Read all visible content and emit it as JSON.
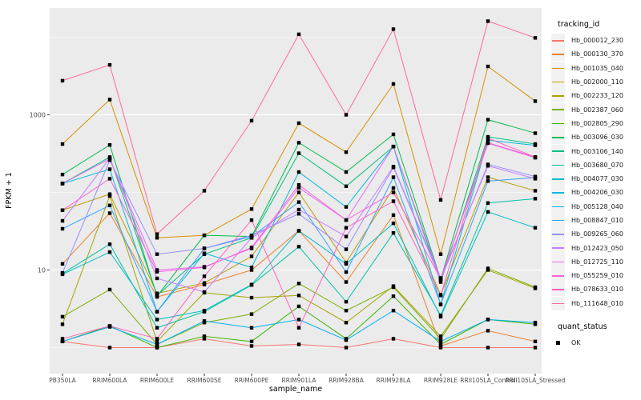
{
  "chart_data": {
    "type": "line",
    "title": "",
    "xlabel": "sample_name",
    "ylabel": "FPKM + 1",
    "yscale": "log10",
    "ylim": [
      0.85,
      25000
    ],
    "grid": true,
    "legend_position": "right",
    "ytick_values": [
      10,
      1000
    ],
    "ytick_labels": [
      "10",
      "1000"
    ],
    "major_gridlines": [
      10,
      1000
    ],
    "minor_gridlines": [
      1,
      100,
      10000
    ],
    "point_color": "#000000",
    "panel_color": "#EBEBEB",
    "gridline_color": "#FFFFFF",
    "axis_text_color": "#4D4D4D",
    "categories": [
      "PB350LA",
      "RRIM600LA",
      "RRIM600LE",
      "RRIM600SE",
      "RRIM600PE",
      "RRIM901LA",
      "RRIM928BA",
      "RRIM928LA",
      "RRIM928LE",
      "RRII105LA_Control",
      "RRII105LA_Stressed"
    ],
    "series": [
      {
        "name": "Hb_000012_230",
        "color": "#F8766D",
        "values": [
          1.2,
          1.0,
          1.0,
          1.3,
          1.05,
          1.1,
          1.0,
          1.3,
          1.0,
          1.0,
          1.0
        ]
      },
      {
        "name": "Hb_000130_370",
        "color": "#EA8331",
        "values": [
          12,
          54,
          4.5,
          6.5,
          10,
          32,
          7,
          51,
          1.05,
          1.65,
          1.2
        ]
      },
      {
        "name": "Hb_001035_040",
        "color": "#D89000",
        "values": [
          420,
          1570,
          26,
          28,
          61,
          780,
          330,
          2500,
          16,
          4200,
          1500
        ]
      },
      {
        "name": "Hb_002000_110",
        "color": "#C09B00",
        "values": [
          59,
          95,
          5,
          6.8,
          15,
          100,
          12.5,
          114,
          4.8,
          157,
          105
        ]
      },
      {
        "name": "Hb_002233_120",
        "color": "#A3A500",
        "values": [
          2.0,
          90,
          1.2,
          5.1,
          4.4,
          4.7,
          2.1,
          6.2,
          1.4,
          10,
          5.8
        ]
      },
      {
        "name": "Hb_002387_060",
        "color": "#7CAE00",
        "values": [
          2.5,
          5.6,
          1.1,
          2.1,
          2.7,
          6.7,
          3.0,
          6.0,
          1.3,
          10.5,
          6.0
        ]
      },
      {
        "name": "Hb_002805_290",
        "color": "#39B600",
        "values": [
          1.2,
          1.9,
          1.0,
          1.4,
          1.2,
          3.4,
          1.3,
          4.6,
          1.1,
          2.3,
          2.0
        ]
      },
      {
        "name": "Hb_003096_030",
        "color": "#00BB4E",
        "values": [
          170,
          409,
          4.6,
          28,
          27,
          437,
          183,
          560,
          7.6,
          865,
          580
        ]
      },
      {
        "name": "Hb_003106_140",
        "color": "#00BF7D",
        "values": [
          130,
          285,
          4.7,
          16,
          26,
          320,
          120,
          390,
          7.0,
          520,
          420
        ]
      },
      {
        "name": "Hb_003680_070",
        "color": "#00C1A3",
        "values": [
          9.0,
          21.5,
          1.8,
          2.9,
          6.4,
          20,
          3.9,
          30,
          2.6,
          73,
          83
        ]
      },
      {
        "name": "Hb_004077_030",
        "color": "#00BFC4",
        "values": [
          8.8,
          17,
          2.3,
          3.0,
          6.5,
          32,
          12,
          40,
          2.5,
          56,
          35
        ]
      },
      {
        "name": "Hb_004206_030",
        "color": "#00BAE0",
        "values": [
          130,
          199,
          2.9,
          16.4,
          10.8,
          183,
          65,
          390,
          3.6,
          470,
          405
        ]
      },
      {
        "name": "Hb_005128_040",
        "color": "#00B0F6",
        "values": [
          1.2,
          1.85,
          1.1,
          2.2,
          1.8,
          2.3,
          1.25,
          3.0,
          1.2,
          2.3,
          2.1
        ]
      },
      {
        "name": "Hb_008847_010",
        "color": "#35A2FF",
        "values": [
          34,
          68,
          2.9,
          19,
          27,
          75,
          9.4,
          157,
          3.6,
          140,
          155
        ]
      },
      {
        "name": "Hb_009265_060",
        "color": "#9590FF",
        "values": [
          9.2,
          260,
          16,
          19,
          28,
          53,
          18.5,
          210,
          7.5,
          230,
          160
        ]
      },
      {
        "name": "Hb_012423_050",
        "color": "#C77CFF",
        "values": [
          43,
          275,
          7.8,
          5.2,
          26,
          60,
          27,
          215,
          7.9,
          220,
          150
        ]
      },
      {
        "name": "Hb_012725_110",
        "color": "#E76BF3",
        "values": [
          130,
          270,
          10,
          11,
          19,
          115,
          44,
          390,
          7.6,
          437,
          285
        ]
      },
      {
        "name": "Hb_055259_010",
        "color": "#FA62DB",
        "values": [
          59,
          150,
          9.5,
          10.8,
          19.5,
          125,
          44,
          100,
          7.7,
          430,
          280
        ]
      },
      {
        "name": "Hb_078633_010",
        "color": "#FF62BC",
        "values": [
          1.3,
          1.9,
          1.3,
          8.3,
          44,
          1.8,
          35,
          77,
          4.7,
          500,
          285
        ]
      },
      {
        "name": "Hb_111648_010",
        "color": "#FF6A98",
        "values": [
          2750,
          4400,
          29,
          105,
          840,
          10900,
          1000,
          12700,
          80,
          16100,
          9800
        ]
      }
    ]
  },
  "legend": {
    "tracking_title": "tracking_id",
    "quant_title": "quant_status",
    "quant_items": [
      {
        "label": "OK"
      }
    ]
  }
}
